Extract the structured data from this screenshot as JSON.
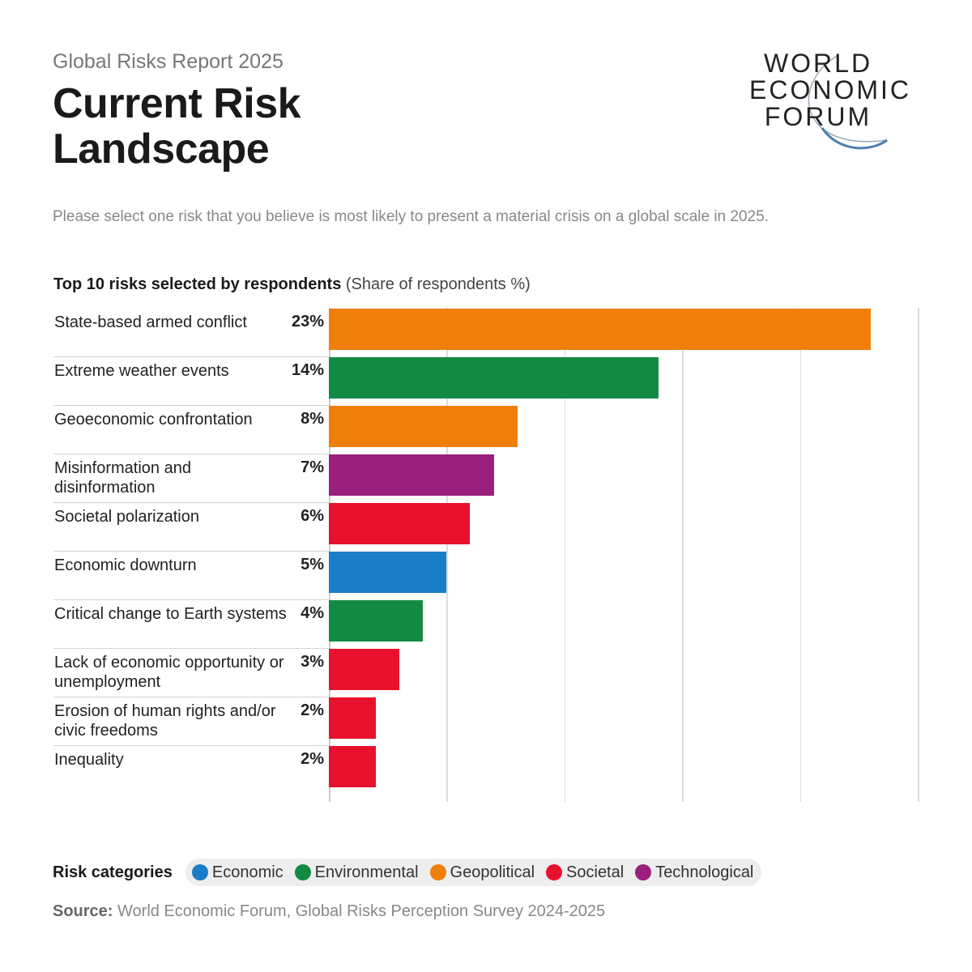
{
  "header": {
    "kicker": "Global Risks Report 2025",
    "title": "Current Risk Landscape"
  },
  "logo": {
    "lines": [
      "WORLD",
      "ECONOMIC",
      "FORUM"
    ]
  },
  "question": "Please select one risk that you believe is most likely to present a material crisis on a global scale in 2025.",
  "colors": {
    "Economic": "#1a7dc8",
    "Environmental": "#138a43",
    "Geopolitical": "#f07f09",
    "Societal": "#e8112d",
    "Technological": "#9b1f7c"
  },
  "chart_data": {
    "type": "bar",
    "orientation": "horizontal",
    "title": "Top 10 risks selected by respondents",
    "unit_label": "(Share of respondents %)",
    "categories": [
      "State-based armed conflict",
      "Extreme weather events",
      "Geoeconomic confrontation",
      "Misinformation and disinformation",
      "Societal polarization",
      "Economic downturn",
      "Critical change to Earth systems",
      "Lack of economic opportunity or unemployment",
      "Erosion of human rights and/or civic freedoms",
      "Inequality"
    ],
    "values": [
      23,
      14,
      8,
      7,
      6,
      5,
      4,
      3,
      2,
      2
    ],
    "labels": [
      "23%",
      "14%",
      "8%",
      "7%",
      "6%",
      "5%",
      "4%",
      "3%",
      "2%",
      "2%"
    ],
    "risk_category": [
      "Geopolitical",
      "Environmental",
      "Geopolitical",
      "Technological",
      "Societal",
      "Economic",
      "Environmental",
      "Societal",
      "Societal",
      "Societal"
    ],
    "xlim": [
      0,
      25
    ],
    "grid": true,
    "legend_position": "bottom"
  },
  "legend": {
    "title": "Risk categories",
    "items": [
      "Economic",
      "Environmental",
      "Geopolitical",
      "Societal",
      "Technological"
    ]
  },
  "source": {
    "label": "Source:",
    "text": "World Economic Forum, Global Risks Perception Survey 2024-2025"
  }
}
